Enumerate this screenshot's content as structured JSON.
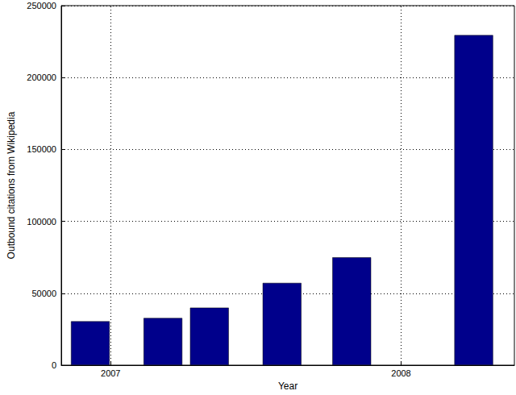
{
  "chart_data": {
    "type": "bar",
    "x_label": "Year",
    "y_label": "Outbound citations from Wikipedia",
    "x": [
      2006.93,
      2007.18,
      2007.34,
      2007.59,
      2007.83,
      2008.25
    ],
    "values": [
      30500,
      32800,
      40000,
      57200,
      75000,
      229500
    ],
    "color": "#00008b",
    "xlim": [
      2006.83,
      2008.39
    ],
    "xticks": [
      2007,
      2008
    ],
    "ylim": [
      0,
      250000
    ],
    "yticks": [
      0,
      50000,
      100000,
      150000,
      200000,
      250000
    ],
    "grid": true
  }
}
